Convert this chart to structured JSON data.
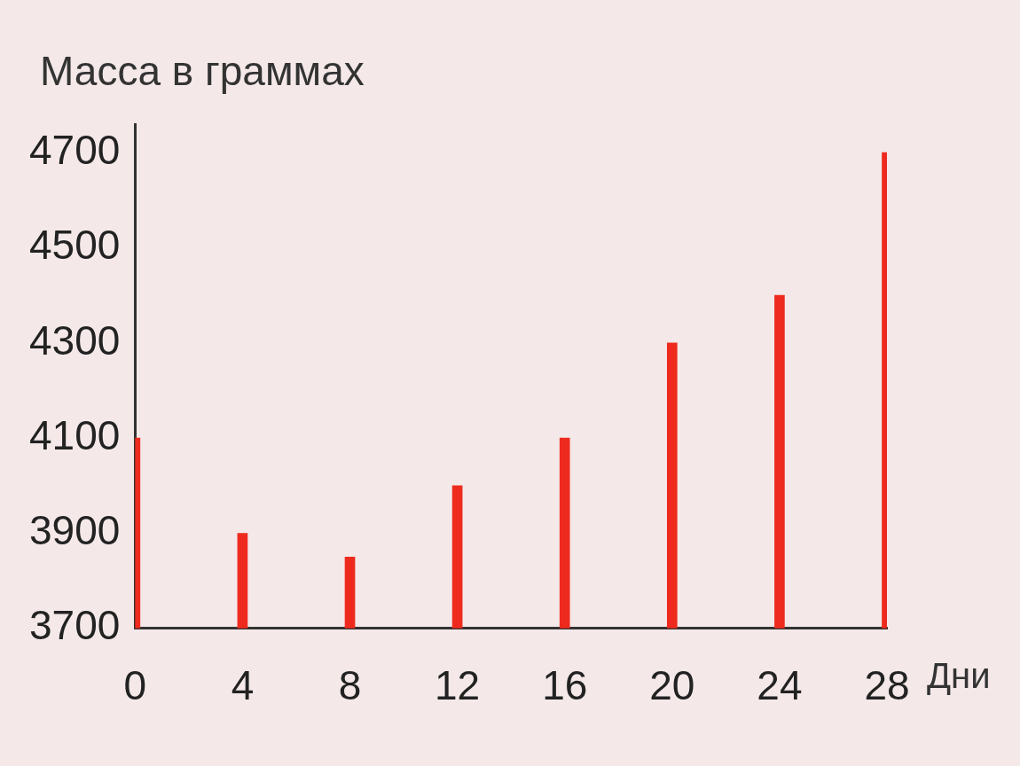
{
  "chart_data": {
    "type": "bar",
    "ylabel": "Масса в граммах",
    "xlabel": "Дни",
    "categories": [
      "0",
      "4",
      "8",
      "12",
      "16",
      "20",
      "24",
      "28"
    ],
    "values": [
      4100,
      3900,
      3850,
      4000,
      4100,
      4300,
      4400,
      4700
    ],
    "color": "#ee2a1e",
    "ylim": [
      3700,
      4760
    ],
    "yticks": [
      3700,
      3900,
      4100,
      4300,
      4500,
      4700
    ],
    "grid": false,
    "legend": false
  }
}
